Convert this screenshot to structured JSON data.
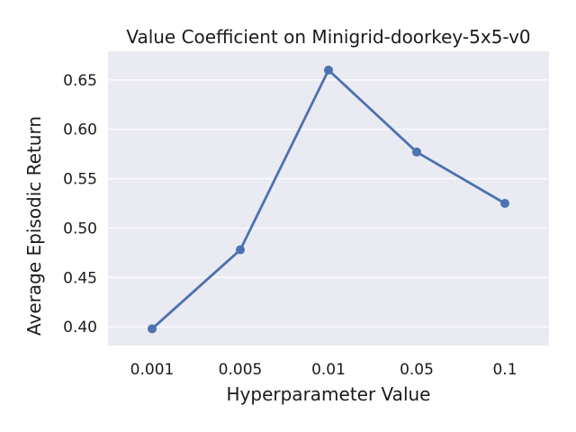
{
  "chart_data": {
    "type": "line",
    "title": "Value Coefficient on Minigrid-doorkey-5x5-v0",
    "xlabel": "Hyperparameter Value",
    "ylabel": "Average Episodic Return",
    "categories": [
      "0.001",
      "0.005",
      "0.01",
      "0.05",
      "0.1"
    ],
    "series": [
      {
        "values": [
          0.398,
          0.478,
          0.66,
          0.577,
          0.525
        ]
      }
    ],
    "ylim": [
      0.381,
      0.679
    ],
    "yticks": [
      "0.40",
      "0.45",
      "0.50",
      "0.55",
      "0.60",
      "0.65"
    ],
    "grid": true,
    "legend": "none",
    "colors": {
      "line": "#4c72b0",
      "background": "#eaeaf2",
      "grid": "#ffffff"
    }
  }
}
